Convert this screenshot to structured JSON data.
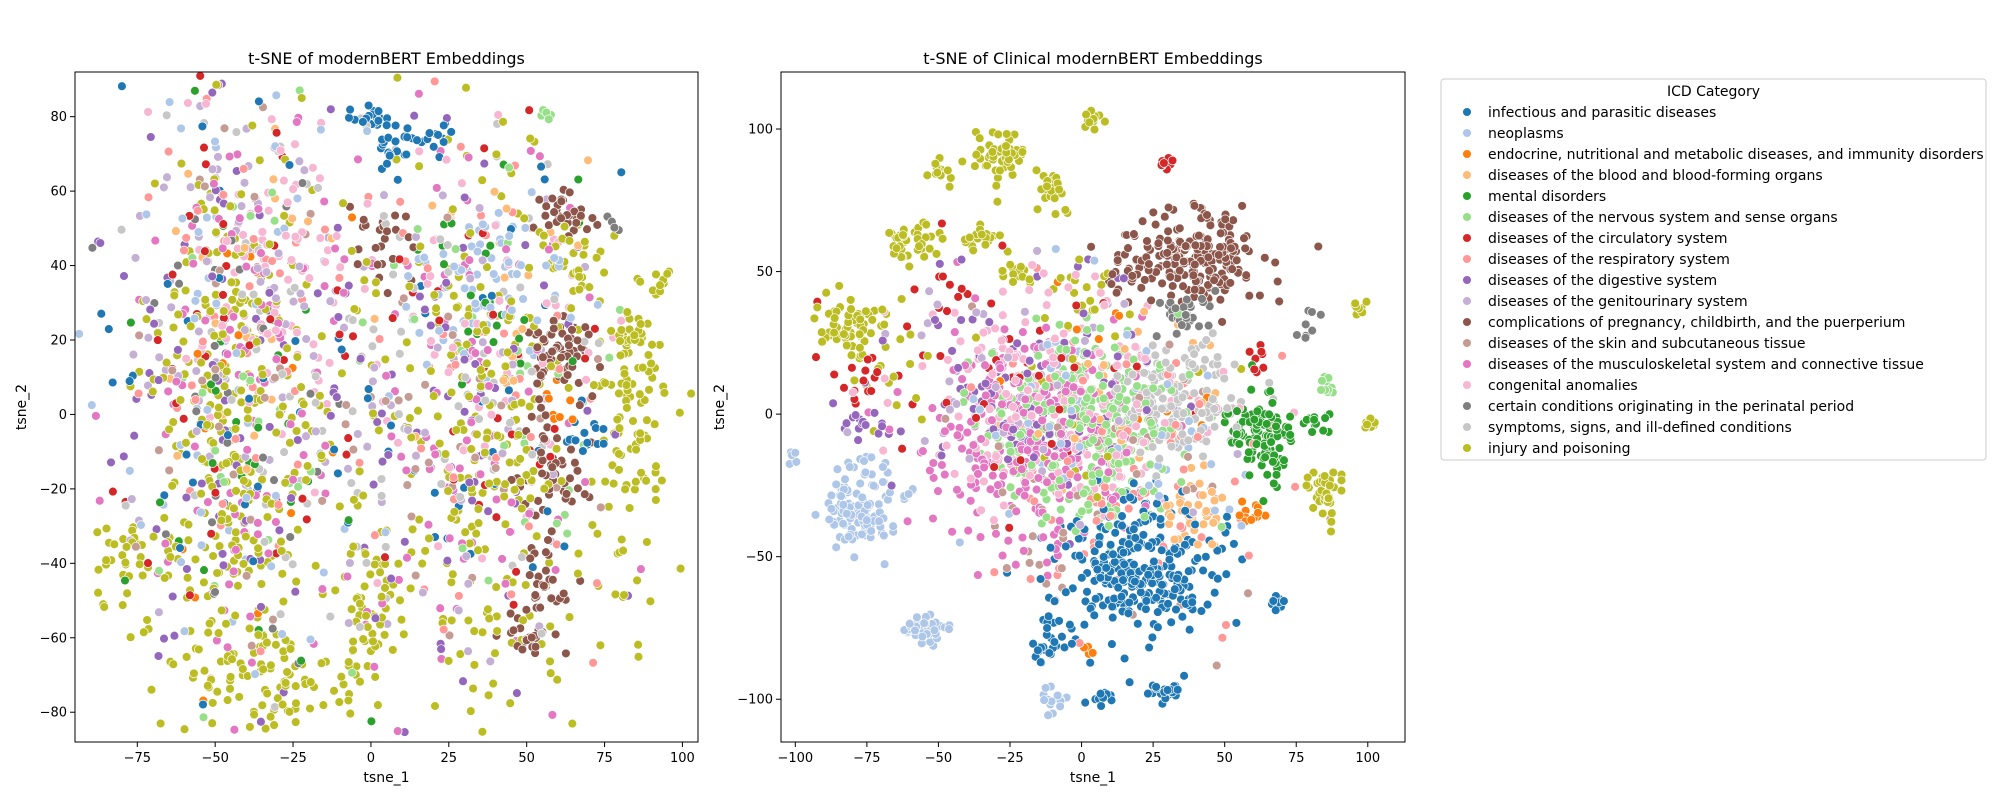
{
  "chart_data": [
    {
      "type": "scatter",
      "title": "t-SNE of modernBERT Embeddings",
      "xlabel": "tsne_1",
      "ylabel": "tsne_2",
      "xlim": [
        -95,
        105
      ],
      "ylim": [
        -88,
        92
      ],
      "xticks": [
        -75,
        -50,
        -25,
        0,
        25,
        50,
        75,
        100
      ],
      "yticks": [
        -80,
        -60,
        -40,
        -20,
        0,
        20,
        40,
        60,
        80
      ],
      "grid": false,
      "legend": "none",
      "clusters": [
        {
          "series": 0,
          "cx": 1,
          "cy": 79,
          "sx": 3,
          "sy": 2,
          "n": 20
        },
        {
          "series": 0,
          "cx": 8,
          "cy": 70,
          "sx": 3,
          "sy": 3,
          "n": 18
        },
        {
          "series": 0,
          "cx": 20,
          "cy": 74,
          "sx": 4,
          "sy": 3,
          "n": 16
        },
        {
          "series": 0,
          "cx": 68,
          "cy": -6,
          "sx": 4,
          "sy": 3,
          "n": 14
        },
        {
          "series": 0,
          "cx": -50,
          "cy": 10,
          "sx": 25,
          "sy": 40,
          "n": 40
        },
        {
          "series": 0,
          "cx": 40,
          "cy": 10,
          "sx": 25,
          "sy": 40,
          "n": 30
        },
        {
          "series": 10,
          "cx": 62,
          "cy": 52,
          "sx": 5,
          "sy": 4,
          "n": 30
        },
        {
          "series": 10,
          "cx": 62,
          "cy": 18,
          "sx": 5,
          "sy": 6,
          "n": 60
        },
        {
          "series": 10,
          "cx": 58,
          "cy": -15,
          "sx": 6,
          "sy": 8,
          "n": 50
        },
        {
          "series": 10,
          "cx": 55,
          "cy": -45,
          "sx": 4,
          "sy": 6,
          "n": 30
        },
        {
          "series": 10,
          "cx": 50,
          "cy": -60,
          "sx": 4,
          "sy": 3,
          "n": 25
        },
        {
          "series": 10,
          "cx": 5,
          "cy": 45,
          "sx": 5,
          "sy": 6,
          "n": 25
        },
        {
          "series": 16,
          "cx": -45,
          "cy": -10,
          "sx": 15,
          "sy": 40,
          "n": 300
        },
        {
          "series": 16,
          "cx": 35,
          "cy": -10,
          "sx": 20,
          "sy": 40,
          "n": 260
        },
        {
          "series": 16,
          "cx": -35,
          "cy": -70,
          "sx": 15,
          "sy": 6,
          "n": 80
        },
        {
          "series": 16,
          "cx": 85,
          "cy": -5,
          "sx": 6,
          "sy": 20,
          "n": 90
        },
        {
          "series": 16,
          "cx": 82,
          "cy": 20,
          "sx": 4,
          "sy": 4,
          "n": 25
        },
        {
          "series": 16,
          "cx": 92,
          "cy": 35,
          "sx": 2,
          "sy": 2,
          "n": 10
        },
        {
          "series": 16,
          "cx": 65,
          "cy": 40,
          "sx": 5,
          "sy": 6,
          "n": 30
        },
        {
          "series": 16,
          "cx": -80,
          "cy": -38,
          "sx": 5,
          "sy": 5,
          "n": 30
        },
        {
          "series": 16,
          "cx": 0,
          "cy": -50,
          "sx": 5,
          "sy": 15,
          "n": 50
        },
        {
          "series": 6,
          "cx": -40,
          "cy": 10,
          "sx": 20,
          "sy": 40,
          "n": 40
        },
        {
          "series": 6,
          "cx": 35,
          "cy": 5,
          "sx": 20,
          "sy": 35,
          "n": 30
        },
        {
          "series": 4,
          "cx": -40,
          "cy": 0,
          "sx": 20,
          "sy": 40,
          "n": 30
        },
        {
          "series": 4,
          "cx": 40,
          "cy": 35,
          "sx": 15,
          "sy": 15,
          "n": 25
        },
        {
          "series": 1,
          "cx": 35,
          "cy": 35,
          "sx": 12,
          "sy": 10,
          "n": 80
        },
        {
          "series": 1,
          "cx": -45,
          "cy": 10,
          "sx": 20,
          "sy": 40,
          "n": 60
        },
        {
          "series": 8,
          "cx": -45,
          "cy": 0,
          "sx": 20,
          "sy": 40,
          "n": 80
        },
        {
          "series": 8,
          "cx": 25,
          "cy": 0,
          "sx": 20,
          "sy": 40,
          "n": 60
        },
        {
          "series": 12,
          "cx": -40,
          "cy": 0,
          "sx": 20,
          "sy": 45,
          "n": 110
        },
        {
          "series": 12,
          "cx": 30,
          "cy": 10,
          "sx": 20,
          "sy": 40,
          "n": 100
        },
        {
          "series": 13,
          "cx": -35,
          "cy": 40,
          "sx": 15,
          "sy": 25,
          "n": 90
        },
        {
          "series": 13,
          "cx": 35,
          "cy": 20,
          "sx": 20,
          "sy": 25,
          "n": 60
        },
        {
          "series": 9,
          "cx": -40,
          "cy": 30,
          "sx": 20,
          "sy": 30,
          "n": 80
        },
        {
          "series": 9,
          "cx": 30,
          "cy": 0,
          "sx": 20,
          "sy": 40,
          "n": 50
        },
        {
          "series": 7,
          "cx": -40,
          "cy": 20,
          "sx": 20,
          "sy": 35,
          "n": 50
        },
        {
          "series": 7,
          "cx": 35,
          "cy": 0,
          "sx": 20,
          "sy": 35,
          "n": 40
        },
        {
          "series": 15,
          "cx": -35,
          "cy": 10,
          "sx": 20,
          "sy": 40,
          "n": 60
        },
        {
          "series": 15,
          "cx": 35,
          "cy": 10,
          "sx": 20,
          "sy": 35,
          "n": 50
        },
        {
          "series": 14,
          "cx": -45,
          "cy": 0,
          "sx": 20,
          "sy": 35,
          "n": 30
        },
        {
          "series": 14,
          "cx": 78,
          "cy": 51,
          "sx": 1,
          "sy": 1,
          "n": 4
        },
        {
          "series": 11,
          "cx": -40,
          "cy": 5,
          "sx": 20,
          "sy": 40,
          "n": 40
        },
        {
          "series": 11,
          "cx": 30,
          "cy": -10,
          "sx": 20,
          "sy": 30,
          "n": 30
        },
        {
          "series": 2,
          "cx": -40,
          "cy": 0,
          "sx": 20,
          "sy": 40,
          "n": 15
        },
        {
          "series": 2,
          "cx": 62,
          "cy": 3,
          "sx": 3,
          "sy": 3,
          "n": 8
        },
        {
          "series": 3,
          "cx": -40,
          "cy": 20,
          "sx": 20,
          "sy": 30,
          "n": 20
        },
        {
          "series": 3,
          "cx": 40,
          "cy": 30,
          "sx": 15,
          "sy": 20,
          "n": 20
        },
        {
          "series": 5,
          "cx": 55,
          "cy": 80,
          "sx": 1,
          "sy": 1,
          "n": 6
        },
        {
          "series": 5,
          "cx": -40,
          "cy": 10,
          "sx": 20,
          "sy": 40,
          "n": 30
        },
        {
          "series": 5,
          "cx": 40,
          "cy": 10,
          "sx": 20,
          "sy": 35,
          "n": 30
        }
      ]
    },
    {
      "type": "scatter",
      "title": "t-SNE of Clinical modernBERT Embeddings",
      "xlabel": "tsne_1",
      "ylabel": "tsne_2",
      "xlim": [
        -105,
        113
      ],
      "ylim": [
        -115,
        120
      ],
      "xticks": [
        -100,
        -75,
        -50,
        -25,
        0,
        25,
        50,
        75,
        100
      ],
      "yticks": [
        -100,
        -50,
        0,
        50,
        100
      ],
      "grid": false,
      "legend": "right-outside",
      "clusters": [
        {
          "series": 16,
          "cx": -82,
          "cy": 30,
          "sx": 5,
          "sy": 5,
          "n": 60
        },
        {
          "series": 16,
          "cx": -60,
          "cy": 60,
          "sx": 5,
          "sy": 4,
          "n": 40
        },
        {
          "series": 16,
          "cx": -28,
          "cy": 90,
          "sx": 5,
          "sy": 5,
          "n": 50
        },
        {
          "series": 16,
          "cx": -10,
          "cy": 78,
          "sx": 3,
          "sy": 4,
          "n": 25
        },
        {
          "series": 16,
          "cx": -50,
          "cy": 85,
          "sx": 2,
          "sy": 2,
          "n": 12
        },
        {
          "series": 16,
          "cx": 4,
          "cy": 103,
          "sx": 2,
          "sy": 2,
          "n": 12
        },
        {
          "series": 16,
          "cx": -35,
          "cy": 62,
          "sx": 3,
          "sy": 3,
          "n": 20
        },
        {
          "series": 16,
          "cx": -22,
          "cy": 50,
          "sx": 3,
          "sy": 3,
          "n": 15
        },
        {
          "series": 16,
          "cx": 86,
          "cy": -28,
          "sx": 3,
          "sy": 5,
          "n": 35
        },
        {
          "series": 16,
          "cx": 101,
          "cy": -3,
          "sx": 1.5,
          "sy": 1.5,
          "n": 10
        },
        {
          "series": 16,
          "cx": 97,
          "cy": 37,
          "sx": 1.5,
          "sy": 1.5,
          "n": 8
        },
        {
          "series": 16,
          "cx": -70,
          "cy": 20,
          "sx": 10,
          "sy": 10,
          "n": 20
        },
        {
          "series": 16,
          "cx": 5,
          "cy": 45,
          "sx": 8,
          "sy": 8,
          "n": 20
        },
        {
          "series": 16,
          "cx": 0,
          "cy": 0,
          "sx": 30,
          "sy": 25,
          "n": 25
        },
        {
          "series": 10,
          "cx": 40,
          "cy": 55,
          "sx": 12,
          "sy": 8,
          "n": 200
        },
        {
          "series": 10,
          "cx": 18,
          "cy": 50,
          "sx": 4,
          "sy": 4,
          "n": 20
        },
        {
          "series": 15,
          "cx": 35,
          "cy": 5,
          "sx": 12,
          "sy": 10,
          "n": 150
        },
        {
          "series": 14,
          "cx": 35,
          "cy": 35,
          "sx": 5,
          "sy": 4,
          "n": 40
        },
        {
          "series": 14,
          "cx": 80,
          "cy": 30,
          "sx": 2,
          "sy": 3,
          "n": 8
        },
        {
          "series": 4,
          "cx": 62,
          "cy": -8,
          "sx": 6,
          "sy": 7,
          "n": 110
        },
        {
          "series": 4,
          "cx": 80,
          "cy": -3,
          "sx": 3,
          "sy": 2,
          "n": 15
        },
        {
          "series": 5,
          "cx": 0,
          "cy": -5,
          "sx": 18,
          "sy": 15,
          "n": 300
        },
        {
          "series": 5,
          "cx": 85,
          "cy": 10,
          "sx": 2,
          "sy": 2,
          "n": 10
        },
        {
          "series": 13,
          "cx": -10,
          "cy": 5,
          "sx": 25,
          "sy": 20,
          "n": 200
        },
        {
          "series": 1,
          "cx": -78,
          "cy": -33,
          "sx": 7,
          "sy": 7,
          "n": 120
        },
        {
          "series": 1,
          "cx": -55,
          "cy": -75,
          "sx": 5,
          "sy": 3,
          "n": 40
        },
        {
          "series": 1,
          "cx": -10,
          "cy": -100,
          "sx": 2,
          "sy": 3,
          "n": 15
        },
        {
          "series": 1,
          "cx": -100,
          "cy": -15,
          "sx": 1.5,
          "sy": 2,
          "n": 6
        },
        {
          "series": 1,
          "cx": 5,
          "cy": 0,
          "sx": 25,
          "sy": 20,
          "n": 60
        },
        {
          "series": 12,
          "cx": -20,
          "cy": -10,
          "sx": 18,
          "sy": 20,
          "n": 250
        },
        {
          "series": 0,
          "cx": 20,
          "cy": -55,
          "sx": 15,
          "sy": 12,
          "n": 280
        },
        {
          "series": 0,
          "cx": -12,
          "cy": -80,
          "sx": 3,
          "sy": 4,
          "n": 25
        },
        {
          "series": 0,
          "cx": 30,
          "cy": -97,
          "sx": 3,
          "sy": 2,
          "n": 20
        },
        {
          "series": 0,
          "cx": 8,
          "cy": -100,
          "sx": 2,
          "sy": 1.5,
          "n": 10
        },
        {
          "series": 0,
          "cx": 68,
          "cy": -65,
          "sx": 1.5,
          "sy": 2,
          "n": 10
        },
        {
          "series": 3,
          "cx": 40,
          "cy": -35,
          "sx": 5,
          "sy": 6,
          "n": 40
        },
        {
          "series": 3,
          "cx": 10,
          "cy": 10,
          "sx": 20,
          "sy": 15,
          "n": 30
        },
        {
          "series": 2,
          "cx": 60,
          "cy": -35,
          "sx": 3,
          "sy": 2,
          "n": 12
        },
        {
          "series": 2,
          "cx": 2,
          "cy": -83,
          "sx": 1,
          "sy": 1,
          "n": 4
        },
        {
          "series": 2,
          "cx": 20,
          "cy": 10,
          "sx": 20,
          "sy": 20,
          "n": 15
        },
        {
          "series": 6,
          "cx": -30,
          "cy": 15,
          "sx": 25,
          "sy": 25,
          "n": 50
        },
        {
          "series": 6,
          "cx": 28,
          "cy": 87,
          "sx": 2,
          "sy": 1.5,
          "n": 8
        },
        {
          "series": 6,
          "cx": -75,
          "cy": 12,
          "sx": 6,
          "sy": 4,
          "n": 15
        },
        {
          "series": 6,
          "cx": 62,
          "cy": 20,
          "sx": 2,
          "sy": 3,
          "n": 8
        },
        {
          "series": 7,
          "cx": 10,
          "cy": -20,
          "sx": 25,
          "sy": 25,
          "n": 90
        },
        {
          "series": 8,
          "cx": -20,
          "cy": 10,
          "sx": 25,
          "sy": 20,
          "n": 90
        },
        {
          "series": 8,
          "cx": -75,
          "cy": -3,
          "sx": 4,
          "sy": 3,
          "n": 15
        },
        {
          "series": 9,
          "cx": -15,
          "cy": 5,
          "sx": 25,
          "sy": 20,
          "n": 60
        },
        {
          "series": 11,
          "cx": 10,
          "cy": -20,
          "sx": 25,
          "sy": 25,
          "n": 60
        }
      ]
    }
  ],
  "legend": {
    "title": "ICD Category",
    "items": [
      {
        "label": "infectious and parasitic diseases",
        "color": "#1f77b4"
      },
      {
        "label": "neoplasms",
        "color": "#aec7e8"
      },
      {
        "label": "endocrine, nutritional and metabolic diseases, and immunity disorders",
        "color": "#ff7f0e"
      },
      {
        "label": "diseases of the blood and blood-forming organs",
        "color": "#ffbb78"
      },
      {
        "label": "mental disorders",
        "color": "#2ca02c"
      },
      {
        "label": "diseases of the nervous system and sense organs",
        "color": "#98df8a"
      },
      {
        "label": "diseases of the circulatory system",
        "color": "#d62728"
      },
      {
        "label": "diseases of the respiratory system",
        "color": "#ff9896"
      },
      {
        "label": "diseases of the digestive system",
        "color": "#9467bd"
      },
      {
        "label": "diseases of the genitourinary system",
        "color": "#c5b0d5"
      },
      {
        "label": "complications of pregnancy, childbirth, and the puerperium",
        "color": "#8c564b"
      },
      {
        "label": "diseases of the skin and subcutaneous tissue",
        "color": "#c49c94"
      },
      {
        "label": "diseases of the musculoskeletal system and connective tissue",
        "color": "#e377c2"
      },
      {
        "label": "congenital anomalies",
        "color": "#f7b6d2"
      },
      {
        "label": "certain conditions originating in the perinatal period",
        "color": "#7f7f7f"
      },
      {
        "label": "symptoms, signs, and ill-defined conditions",
        "color": "#c7c7c7"
      },
      {
        "label": "injury and poisoning",
        "color": "#bcbd22"
      }
    ]
  }
}
